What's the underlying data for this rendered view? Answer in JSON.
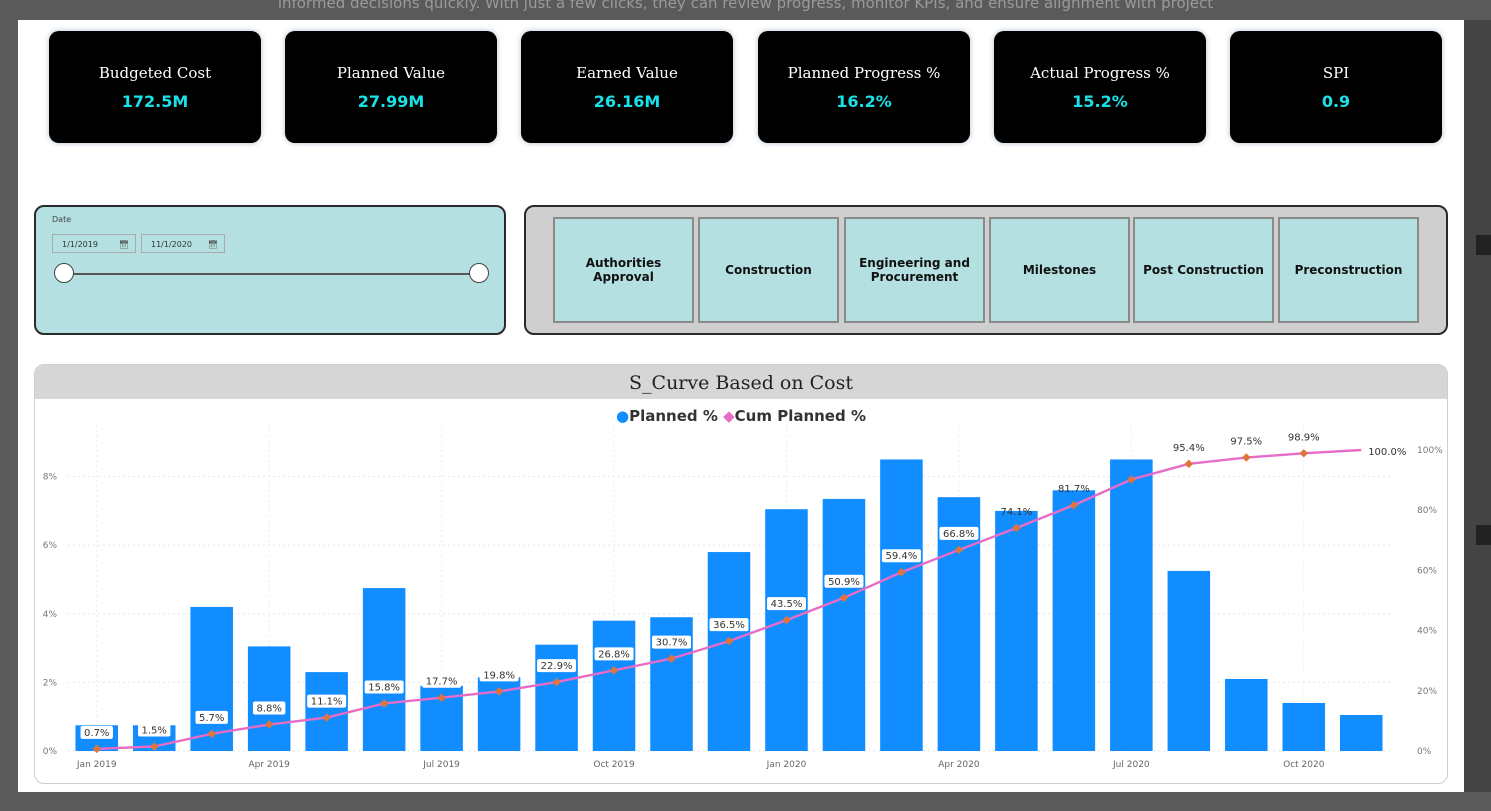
{
  "header_text": "informed decisions quickly. With just a few clicks, they can review progress, monitor KPIs, and ensure alignment with project",
  "kpis": [
    {
      "label": "Budgeted Cost",
      "value": "172.5M"
    },
    {
      "label": "Planned Value",
      "value": "27.99M"
    },
    {
      "label": "Earned Value",
      "value": "26.16M"
    },
    {
      "label": "Planned Progress %",
      "value": "16.2%"
    },
    {
      "label": "Actual Progress %",
      "value": "15.2%"
    },
    {
      "label": "SPI",
      "value": "0.9"
    }
  ],
  "date_slicer": {
    "label": "Date",
    "start": "1/1/2019",
    "end": "11/1/2020",
    "calendar_icon": "calendar-icon"
  },
  "phases": [
    "Authorities Approval",
    "Construction",
    "Engineering and Procurement",
    "Milestones",
    "Post Construction",
    "Preconstruction"
  ],
  "colors": {
    "kpi_value": "#18e1e8",
    "bar": "#118dff",
    "line": "#e66cc7",
    "marker": "#e0743d",
    "panel": "#b4e0e1"
  },
  "chart_data": {
    "type": "bar",
    "title": "S_Curve Based on Cost",
    "legend": {
      "position": "top-center",
      "planned": "Planned %",
      "cum": "Cum Planned %"
    },
    "x_tick_labels": [
      {
        "index": 0,
        "label": "Jan 2019"
      },
      {
        "index": 3,
        "label": "Apr 2019"
      },
      {
        "index": 6,
        "label": "Jul 2019"
      },
      {
        "index": 9,
        "label": "Oct 2019"
      },
      {
        "index": 12,
        "label": "Jan 2020"
      },
      {
        "index": 15,
        "label": "Apr 2020"
      },
      {
        "index": 18,
        "label": "Jul 2020"
      },
      {
        "index": 21,
        "label": "Oct 2020"
      }
    ],
    "y_left": {
      "ticks": [
        "0%",
        "2%",
        "4%",
        "6%",
        "8%"
      ],
      "values": [
        0,
        2,
        4,
        6,
        8
      ],
      "max": 8.7
    },
    "y_right": {
      "ticks": [
        "0%",
        "20%",
        "40%",
        "60%",
        "80%",
        "100%"
      ],
      "values": [
        0,
        20,
        40,
        60,
        80,
        100
      ],
      "max": 100
    },
    "series": [
      {
        "name": "Planned %",
        "axis": "left",
        "values": [
          0.75,
          0.75,
          4.2,
          3.05,
          2.3,
          4.75,
          1.9,
          2.15,
          3.1,
          3.8,
          3.9,
          5.8,
          7.05,
          7.35,
          8.5,
          7.4,
          7.0,
          7.6,
          8.5,
          5.25,
          2.1,
          1.4,
          1.05
        ]
      },
      {
        "name": "Cum Planned %",
        "axis": "right",
        "values": [
          0.7,
          1.5,
          5.7,
          8.8,
          11.1,
          15.8,
          17.7,
          19.8,
          22.9,
          26.8,
          30.7,
          36.5,
          43.5,
          50.9,
          59.4,
          66.8,
          74.1,
          81.7,
          90.2,
          95.4,
          97.5,
          98.9,
          100.0
        ],
        "labels": [
          "0.7%",
          "1.5%",
          "5.7%",
          "8.8%",
          "11.1%",
          "15.8%",
          "17.7%",
          "19.8%",
          "22.9%",
          "26.8%",
          "30.7%",
          "36.5%",
          "43.5%",
          "50.9%",
          "59.4%",
          "66.8%",
          "74.1%",
          "81.7%",
          "",
          "95.4%",
          "97.5%",
          "98.9%",
          "100.0%"
        ]
      }
    ],
    "grid": true
  }
}
